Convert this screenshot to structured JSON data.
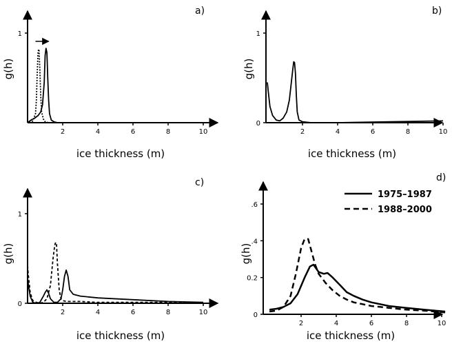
{
  "chart_data": [
    {
      "panel_label": "a)",
      "type": "line",
      "xlabel": "ice thickness (m)",
      "ylabel": "g(h)",
      "xlim": [
        0,
        10.5
      ],
      "ylim": [
        0,
        1.05
      ],
      "xticks": [
        2,
        4,
        6,
        8,
        10
      ],
      "yticks": [
        1
      ],
      "annotation": "arrow-right",
      "series": [
        {
          "style": "dotted",
          "x": [
            0.1,
            0.3,
            0.45,
            0.5,
            0.55,
            0.6,
            0.65,
            0.7,
            0.75,
            0.8,
            0.9,
            1.0,
            1.2,
            1.5,
            2.0
          ],
          "y": [
            0.0,
            0.02,
            0.1,
            0.25,
            0.55,
            0.8,
            0.82,
            0.6,
            0.3,
            0.12,
            0.04,
            0.01,
            0.0,
            0.0,
            0.0
          ]
        },
        {
          "style": "solid",
          "x": [
            0.0,
            0.2,
            0.4,
            0.6,
            0.75,
            0.85,
            0.95,
            1.0,
            1.05,
            1.1,
            1.15,
            1.2,
            1.25,
            1.35,
            1.5,
            1.7,
            2.0,
            3.0,
            6.0,
            9.5
          ],
          "y": [
            0.0,
            0.03,
            0.05,
            0.08,
            0.12,
            0.2,
            0.45,
            0.75,
            0.83,
            0.78,
            0.5,
            0.25,
            0.1,
            0.03,
            0.01,
            0.0,
            0.0,
            0.0,
            0.0,
            0.0
          ]
        }
      ]
    },
    {
      "panel_label": "b)",
      "type": "line",
      "xlabel": "ice thickness (m)",
      "ylabel": "g(h)",
      "xlim": [
        0,
        10.3
      ],
      "ylim": [
        0,
        1.05
      ],
      "xticks": [
        2,
        4,
        6,
        8,
        10
      ],
      "yticks": [
        0,
        1
      ],
      "series": [
        {
          "style": "solid",
          "x": [
            0.0,
            0.05,
            0.15,
            0.3,
            0.5,
            0.7,
            0.9,
            1.1,
            1.25,
            1.35,
            1.45,
            1.5,
            1.55,
            1.6,
            1.65,
            1.7,
            1.8,
            2.0,
            2.5,
            4.0,
            7.0,
            10.0
          ],
          "y": [
            0.45,
            0.35,
            0.18,
            0.08,
            0.03,
            0.02,
            0.05,
            0.12,
            0.25,
            0.42,
            0.6,
            0.68,
            0.67,
            0.55,
            0.3,
            0.12,
            0.03,
            0.01,
            0.0,
            0.0,
            0.01,
            0.02
          ]
        }
      ]
    },
    {
      "panel_label": "c)",
      "type": "line",
      "xlabel": "ice thickness (m)",
      "ylabel": "g(h)",
      "xlim": [
        0,
        10.5
      ],
      "ylim": [
        0,
        1.05
      ],
      "xticks": [
        2,
        4,
        6,
        8,
        10
      ],
      "yticks": [
        0,
        1
      ],
      "series": [
        {
          "style": "dashed",
          "x": [
            0.0,
            0.05,
            0.15,
            0.3,
            0.5,
            0.7,
            0.9,
            1.1,
            1.3,
            1.45,
            1.55,
            1.6,
            1.65,
            1.7,
            1.8,
            1.9,
            2.0,
            2.2,
            2.5,
            3.0,
            4.0,
            6.0,
            8.0,
            10.0
          ],
          "y": [
            0.42,
            0.3,
            0.12,
            0.03,
            0.01,
            0.0,
            0.01,
            0.05,
            0.2,
            0.5,
            0.65,
            0.68,
            0.65,
            0.45,
            0.15,
            0.05,
            0.03,
            0.02,
            0.02,
            0.02,
            0.01,
            0.01,
            0.01,
            0.0
          ]
        },
        {
          "style": "solid",
          "x": [
            0.0,
            0.05,
            0.15,
            0.3,
            0.5,
            0.7,
            0.9,
            1.0,
            1.1,
            1.2,
            1.3,
            1.5,
            1.7,
            1.9,
            2.0,
            2.1,
            2.2,
            2.3,
            2.4,
            2.6,
            3.0,
            4.0,
            6.0,
            8.0,
            10.0
          ],
          "y": [
            0.28,
            0.2,
            0.08,
            0.01,
            0.0,
            0.01,
            0.08,
            0.12,
            0.15,
            0.11,
            0.05,
            0.01,
            0.01,
            0.05,
            0.15,
            0.3,
            0.37,
            0.3,
            0.15,
            0.1,
            0.08,
            0.06,
            0.04,
            0.02,
            0.01
          ]
        }
      ]
    },
    {
      "panel_label": "d)",
      "type": "line",
      "xlabel": "ice thickness (m)",
      "ylabel": "g(h)",
      "xlim": [
        0,
        10.3
      ],
      "ylim": [
        0,
        0.7
      ],
      "xticks": [
        2,
        4,
        6,
        8,
        10
      ],
      "yticks": [
        0,
        0.2,
        0.4,
        0.6
      ],
      "ytick_labels": [
        "0",
        "0.2",
        ".4",
        ".6"
      ],
      "legend": "top-right",
      "series": [
        {
          "name": "1975–1987",
          "style": "solid",
          "x": [
            0.2,
            0.6,
            1.0,
            1.4,
            1.8,
            2.2,
            2.5,
            2.7,
            3.0,
            3.3,
            3.5,
            3.8,
            4.2,
            4.6,
            5.0,
            5.5,
            6.0,
            6.5,
            7.0,
            8.0,
            9.0,
            10.2
          ],
          "y": [
            0.025,
            0.03,
            0.04,
            0.06,
            0.11,
            0.2,
            0.26,
            0.27,
            0.23,
            0.22,
            0.225,
            0.2,
            0.16,
            0.12,
            0.1,
            0.08,
            0.065,
            0.055,
            0.045,
            0.035,
            0.025,
            0.015
          ]
        },
        {
          "name": "1988–2000",
          "style": "dashed",
          "x": [
            0.2,
            0.6,
            1.0,
            1.4,
            1.7,
            2.0,
            2.2,
            2.4,
            2.6,
            2.8,
            3.0,
            3.4,
            3.8,
            4.2,
            4.6,
            5.0,
            5.5,
            6.0,
            6.5,
            7.0,
            8.0,
            9.0,
            10.2
          ],
          "y": [
            0.015,
            0.02,
            0.04,
            0.1,
            0.22,
            0.36,
            0.41,
            0.41,
            0.34,
            0.27,
            0.22,
            0.17,
            0.13,
            0.1,
            0.08,
            0.065,
            0.055,
            0.045,
            0.04,
            0.035,
            0.025,
            0.02,
            0.01
          ]
        }
      ]
    }
  ]
}
